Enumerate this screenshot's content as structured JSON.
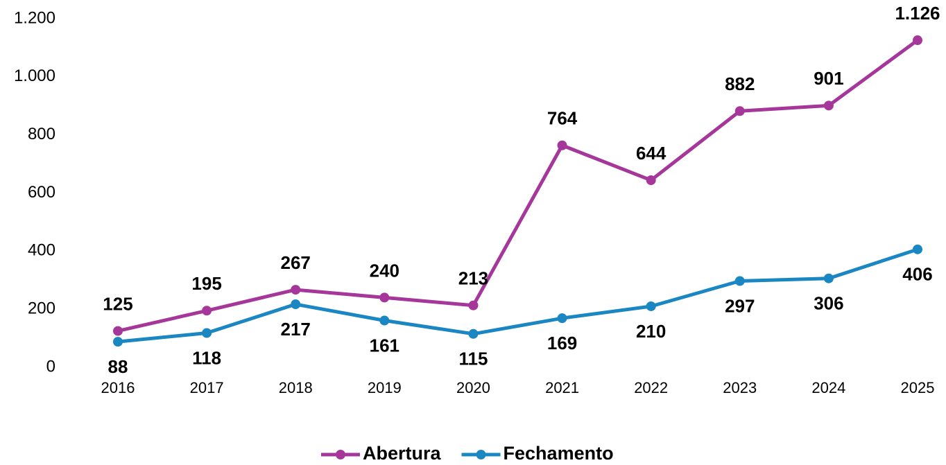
{
  "chart_data": {
    "type": "line",
    "categories": [
      "2016",
      "2017",
      "2018",
      "2019",
      "2020",
      "2021",
      "2022",
      "2023",
      "2024",
      "2025"
    ],
    "series": [
      {
        "name": "Abertura",
        "color": "#a6379a",
        "label_position": "above",
        "values": [
          125,
          195,
          267,
          240,
          213,
          764,
          644,
          882,
          901,
          1126
        ],
        "value_labels": [
          "125",
          "195",
          "267",
          "240",
          "213",
          "764",
          "644",
          "882",
          "901",
          "1.126"
        ]
      },
      {
        "name": "Fechamento",
        "color": "#1a87c2",
        "label_position": "below",
        "values": [
          88,
          118,
          217,
          161,
          115,
          169,
          210,
          297,
          306,
          406
        ]
      }
    ],
    "ylim": [
      0,
      1200
    ],
    "yticks": [
      0,
      200,
      400,
      600,
      800,
      {
        "value": 1000,
        "label": "1.000"
      },
      {
        "value": 1200,
        "label": "1.200"
      }
    ],
    "grid": false,
    "legend": "bottom"
  }
}
